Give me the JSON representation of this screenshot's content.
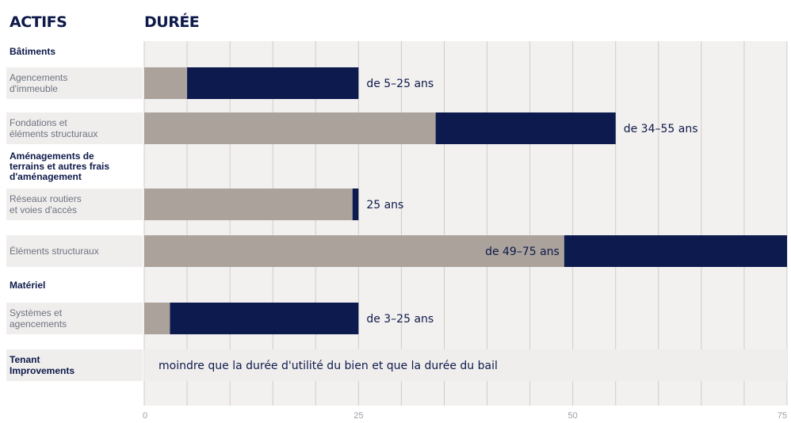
{
  "headers": {
    "assets": "ACTIFS",
    "duration": "DURÉE"
  },
  "colors": {
    "grey_bar": "#aaa29b",
    "navy_bar": "#0c1a4e",
    "label_bg": "#f0eeed",
    "grid": "#cfcbc7",
    "plot_bg": "#f3f1f0"
  },
  "chart_data": {
    "type": "bar",
    "orientation": "horizontal",
    "stacked": true,
    "xlim": [
      0,
      75
    ],
    "x_ticks": [
      "0",
      "25",
      "50",
      "75"
    ],
    "grid": true,
    "rows": [
      {
        "kind": "category",
        "lines": [
          "Bâtiments"
        ]
      },
      {
        "kind": "item",
        "lines": [
          "Agencements",
          "d'immeuble"
        ],
        "start": 5,
        "end": 25,
        "value_label": "de 5–25 ans",
        "label_pos": "outside"
      },
      {
        "kind": "item",
        "lines": [
          "Fondations et",
          "éléments structuraux"
        ],
        "start": 34,
        "end": 55,
        "value_label": "de 34–55 ans",
        "label_pos": "outside"
      },
      {
        "kind": "category",
        "lines": [
          "Aménagements de",
          "terrains et autres frais",
          "d'aménagement"
        ]
      },
      {
        "kind": "item",
        "lines": [
          "Réseaux routiers",
          "et voies d'accès"
        ],
        "start": 24.3,
        "end": 25,
        "value_label": "25 ans",
        "label_pos": "outside"
      },
      {
        "kind": "item",
        "lines": [
          "Éléments structuraux"
        ],
        "start": 49,
        "end": 75,
        "value_label": "de 49–75 ans",
        "label_pos": "inside"
      },
      {
        "kind": "category",
        "lines": [
          "Matériel"
        ]
      },
      {
        "kind": "item",
        "lines": [
          "Systèmes et",
          "agencements"
        ],
        "start": 3,
        "end": 25,
        "value_label": "de 3–25 ans",
        "label_pos": "outside"
      },
      {
        "kind": "note",
        "lines": [
          "Tenant",
          "Improvements"
        ],
        "note": "moindre que la durée d'utilité du bien et que la durée du bail"
      }
    ]
  }
}
